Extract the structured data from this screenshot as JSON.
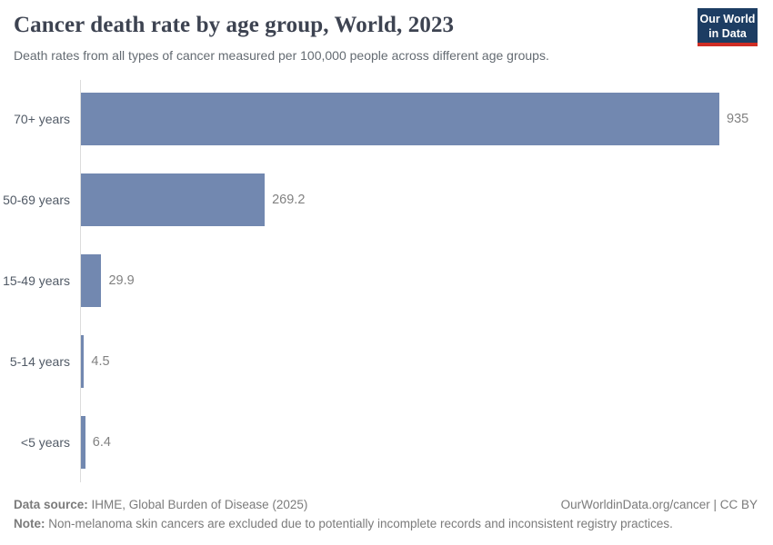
{
  "header": {
    "title": "Cancer death rate by age group, World, 2023",
    "subtitle": "Death rates from all types of cancer measured per 100,000 people across different age groups.",
    "logo": {
      "line1": "Our World",
      "line2": "in Data",
      "background_color": "#1d3d63",
      "accent_color": "#cf2d24"
    }
  },
  "chart_data": {
    "type": "bar",
    "orientation": "horizontal",
    "title": "Cancer death rate by age group, World, 2023",
    "subtitle": "Death rates from all types of cancer measured per 100,000 people across different age groups.",
    "categories": [
      "70+ years",
      "50-69 years",
      "15-49 years",
      "5-14 years",
      "<5 years"
    ],
    "values": [
      935,
      269.2,
      29.9,
      4.5,
      6.4
    ],
    "value_labels": [
      "935",
      "269.2",
      "29.9",
      "4.5",
      "6.4"
    ],
    "xlabel": "",
    "ylabel": "",
    "xlim": [
      0,
      935
    ],
    "grid": false,
    "legend": false,
    "bar_color": "#7288b0",
    "axis_color": "#dcdcdc"
  },
  "footer": {
    "source_label": "Data source:",
    "source_text": " IHME, Global Burden of Disease (2025)",
    "credit": "OurWorldinData.org/cancer | CC BY",
    "note_label": "Note:",
    "note_text": " Non-melanoma skin cancers are excluded due to potentially incomplete records and inconsistent registry practices."
  }
}
